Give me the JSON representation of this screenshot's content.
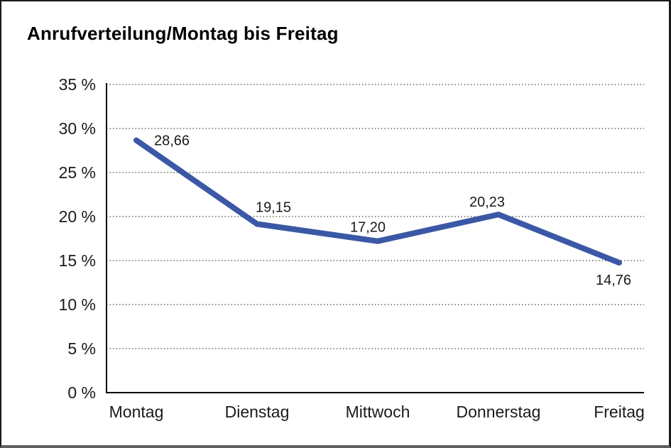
{
  "page": {
    "title": "Anrufverteilung/Montag bis Freitag"
  },
  "chart_data": {
    "type": "line",
    "title": "Anrufverteilung/Montag bis Freitag",
    "categories": [
      "Montag",
      "Dienstag",
      "Mittwoch",
      "Donnerstag",
      "Freitag"
    ],
    "series": [
      {
        "name": "Anrufverteilung",
        "values": [
          28.66,
          19.15,
          17.2,
          20.23,
          14.76
        ]
      }
    ],
    "value_labels": [
      "28,66",
      "19,15",
      "17,20",
      "20,23",
      "14,76"
    ],
    "y_tick_labels": [
      "0 %",
      "5 %",
      "10 %",
      "15 %",
      "20 %",
      "25 %",
      "30 %",
      "35 %"
    ],
    "ylim": [
      0,
      35
    ],
    "y_tick_step": 5,
    "grid": "dotted-horizontal",
    "legend": "none",
    "colors": {
      "line": "#3a58a5",
      "axis": "#000000",
      "grid": "#444444",
      "text": "#1a1a1a"
    }
  }
}
